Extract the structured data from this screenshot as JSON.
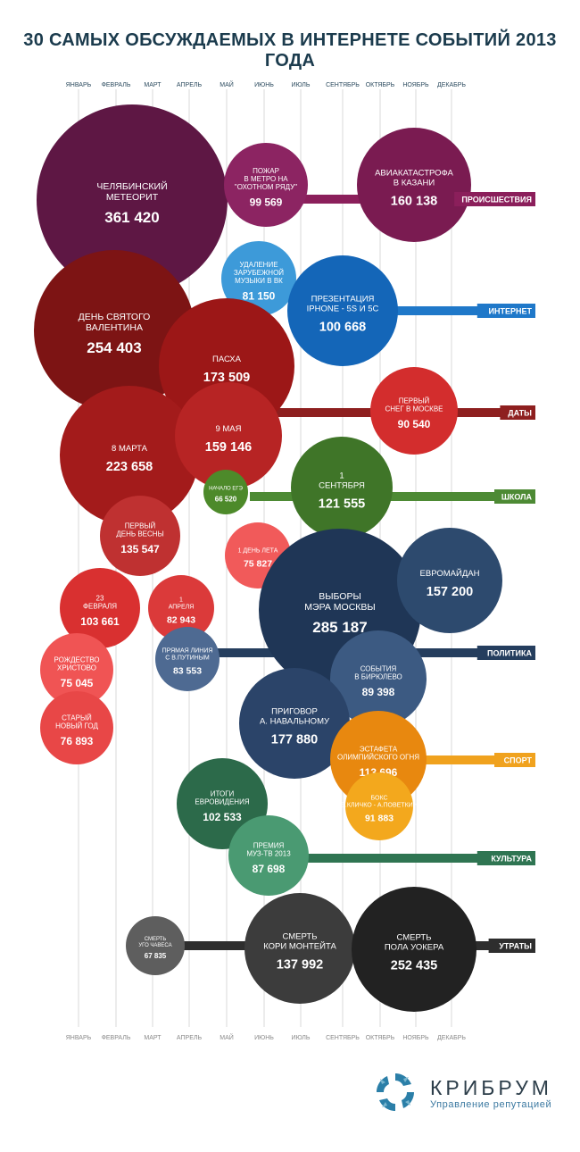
{
  "title": "30 САМЫХ ОБСУЖДАЕМЫХ В ИНТЕРНЕТЕ СОБЫТИЙ 2013 ГОДА",
  "logo": {
    "name": "КРИБРУМ",
    "tagline": "Управление репутацией",
    "icon": "kribrum-logo-icon"
  },
  "chart_data": {
    "type": "bubble",
    "months": [
      "ЯНВАРЬ",
      "ФЕВРАЛЬ",
      "МАРТ",
      "АПРЕЛЬ",
      "МАЙ",
      "ИЮНЬ",
      "ИЮЛЬ",
      "СЕНТЯБРЬ",
      "ОКТЯБРЬ",
      "НОЯБРЬ",
      "ДЕКАБРЬ"
    ],
    "categories": [
      {
        "name": "ПРОИСШЕСТВИЯ",
        "color": "#8b1f5b"
      },
      {
        "name": "ИНТЕРНЕТ",
        "color": "#1f78c9"
      },
      {
        "name": "ДАТЫ",
        "color": "#8e1f1f"
      },
      {
        "name": "ШКОЛА",
        "color": "#4d8a34"
      },
      {
        "name": "ПОЛИТИКА",
        "color": "#253e5e"
      },
      {
        "name": "СПОРТ",
        "color": "#f0a21e"
      },
      {
        "name": "КУЛЬТУРА",
        "color": "#2f7552"
      },
      {
        "name": "УТРАТЫ",
        "color": "#2e2e2e"
      }
    ],
    "events": [
      {
        "lines": [
          "ЧЕЛЯБИНСКИЙ",
          "МЕТЕОРИТ"
        ],
        "value": "361 420",
        "color": "#5e1744",
        "category": "ПРОИСШЕСТВИЯ"
      },
      {
        "lines": [
          "ПОЖАР",
          "В МЕТРО НА",
          "\"ОХОТНОМ РЯДУ\""
        ],
        "value": "99 569",
        "color": "#8c2462",
        "category": "ПРОИСШЕСТВИЯ"
      },
      {
        "lines": [
          "АВИАКАТАСТРОФА",
          "В КАЗАНИ"
        ],
        "value": "160 138",
        "color": "#7a1b51",
        "category": "ПРОИСШЕСТВИЯ"
      },
      {
        "lines": [
          "УДАЛЕНИЕ",
          "ЗАРУБЕЖНОЙ",
          "МУЗЫКИ В ВК"
        ],
        "value": "81 150",
        "color": "#3d9ad9",
        "category": "ИНТЕРНЕТ"
      },
      {
        "lines": [
          "ПРЕЗЕНТАЦИЯ",
          "IPHONE - 5S И 5C"
        ],
        "value": "100 668",
        "color": "#1466b8",
        "category": "ИНТЕРНЕТ"
      },
      {
        "lines": [
          "ДЕНЬ СВЯТОГО",
          "ВАЛЕНТИНА"
        ],
        "value": "254 403",
        "color": "#7d1414",
        "category": "ДАТЫ"
      },
      {
        "lines": [
          "ПАСХА"
        ],
        "value": "173 509",
        "color": "#9c1717",
        "category": "ДАТЫ"
      },
      {
        "lines": [
          "ПЕРВЫЙ",
          "СНЕГ В МОСКВЕ"
        ],
        "value": "90 540",
        "color": "#d32d2d",
        "category": "ДАТЫ"
      },
      {
        "lines": [
          "8 МАРТА"
        ],
        "value": "223 658",
        "color": "#a31b1b",
        "category": "ДАТЫ"
      },
      {
        "lines": [
          "9 МАЯ"
        ],
        "value": "159 146",
        "color": "#b72424",
        "category": "ДАТЫ"
      },
      {
        "lines": [
          "НАЧАЛО ЕГЭ"
        ],
        "value": "66 520",
        "color": "#4d8a2a",
        "category": "ШКОЛА"
      },
      {
        "lines": [
          "1",
          "СЕНТЯБРЯ"
        ],
        "value": "121 555",
        "color": "#3f7528",
        "category": "ШКОЛА"
      },
      {
        "lines": [
          "ПЕРВЫЙ",
          "ДЕНЬ ВЕСНЫ"
        ],
        "value": "135 547",
        "color": "#bf3131",
        "category": "ДАТЫ"
      },
      {
        "lines": [
          "1 ДЕНЬ ЛЕТА"
        ],
        "value": "75 827",
        "color": "#f15a5a",
        "category": "ДАТЫ"
      },
      {
        "lines": [
          "ВЫБОРЫ",
          "МЭРА МОСКВЫ"
        ],
        "value": "285 187",
        "color": "#1f3656",
        "category": "ПОЛИТИКА"
      },
      {
        "lines": [
          "ЕВРОМАЙДАН"
        ],
        "value": "157 200",
        "color": "#2d4a6e",
        "category": "ПОЛИТИКА"
      },
      {
        "lines": [
          "23",
          "ФЕВРАЛЯ"
        ],
        "value": "103 661",
        "color": "#d93030",
        "category": "ДАТЫ"
      },
      {
        "lines": [
          "1",
          "АПРЕЛЯ"
        ],
        "value": "82 943",
        "color": "#db3a3a",
        "category": "ДАТЫ"
      },
      {
        "lines": [
          "ПРЯМАЯ ЛИНИЯ",
          "С В.ПУТИНЫМ"
        ],
        "value": "83 553",
        "color": "#4e6a92",
        "category": "ПОЛИТИКА"
      },
      {
        "lines": [
          "СОБЫТИЯ",
          "В БИРЮЛЕВО"
        ],
        "value": "89 398",
        "color": "#3c5a82",
        "category": "ПОЛИТИКА"
      },
      {
        "lines": [
          "РОЖДЕСТВО",
          "ХРИСТОВО"
        ],
        "value": "75 045",
        "color": "#f05454",
        "category": "ДАТЫ"
      },
      {
        "lines": [
          "СТАРЫЙ",
          "НОВЫЙ ГОД"
        ],
        "value": "76 893",
        "color": "#e84747",
        "category": "ДАТЫ"
      },
      {
        "lines": [
          "ПРИГОВОР",
          "А. НАВАЛЬНОМУ"
        ],
        "value": "177 880",
        "color": "#2b4469",
        "category": "ПОЛИТИКА"
      },
      {
        "lines": [
          "ЭСТАФЕТА",
          "ОЛИМПИЙСКОГО ОГНЯ"
        ],
        "value": "113 696",
        "color": "#e8880f",
        "category": "СПОРТ"
      },
      {
        "lines": [
          "БОКС",
          "В.КЛИЧКО - А.ПОВЕТКИН"
        ],
        "value": "91 883",
        "color": "#f3a81d",
        "category": "СПОРТ"
      },
      {
        "lines": [
          "ИТОГИ",
          "ЕВРОВИДЕНИЯ"
        ],
        "value": "102 533",
        "color": "#2c6a4a",
        "category": "КУЛЬТУРА"
      },
      {
        "lines": [
          "ПРЕМИЯ",
          "МУЗ-ТВ 2013"
        ],
        "value": "87 698",
        "color": "#4a9a72",
        "category": "КУЛЬТУРА"
      },
      {
        "lines": [
          "СМЕРТЬ",
          "УГО ЧАВЕСА"
        ],
        "value": "67 835",
        "color": "#5e5e5e",
        "category": "УТРАТЫ"
      },
      {
        "lines": [
          "СМЕРТЬ",
          "КОРИ МОНТЕЙТА"
        ],
        "value": "137 992",
        "color": "#3c3c3c",
        "category": "УТРАТЫ"
      },
      {
        "lines": [
          "СМЕРТЬ",
          "ПОЛА УОКЕРА"
        ],
        "value": "252 435",
        "color": "#222222",
        "category": "УТРАТЫ"
      }
    ]
  }
}
